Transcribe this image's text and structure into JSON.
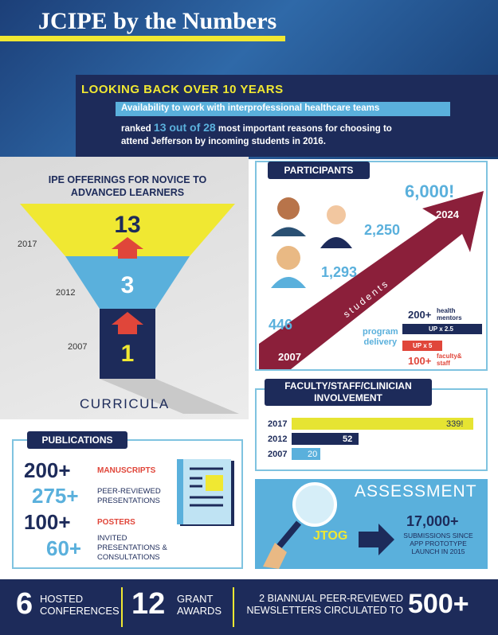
{
  "title": "JCIPE by the Numbers",
  "banner": {
    "heading": "LOOKING BACK OVER 10 YEARS",
    "line1": "Availability to work with interprofessional healthcare teams",
    "line2_pre": "ranked",
    "highlight": "13 out of 28",
    "line2_post": "most important reasons for choosing to",
    "line3": "attend Jefferson by incoming students in 2016."
  },
  "curricula": {
    "heading": [
      "IPE OFFERINGS FOR NOVICE TO",
      "ADVANCED LEARNERS"
    ],
    "levels": [
      {
        "year": "2017",
        "value": 13
      },
      {
        "year": "2012",
        "value": 3
      },
      {
        "year": "2007",
        "value": 1
      }
    ],
    "label": "CURRICULA"
  },
  "participants": {
    "heading": "PARTICIPANTS",
    "points": [
      "446",
      "1,293",
      "2,250",
      "6,000!"
    ],
    "start_year": "2007",
    "end_year": "2024",
    "arrow_label": "students",
    "program_delivery": [
      "program",
      "delivery"
    ],
    "mentors": {
      "count": "200+",
      "label": [
        "health",
        "mentors"
      ],
      "growth": "UP x 2.5"
    },
    "faculty": {
      "count": "100+",
      "label": [
        "faculty&",
        "staff"
      ],
      "growth": "UP x 5"
    }
  },
  "faculty": {
    "heading": [
      "FACULTY/STAFF/CLINICIAN",
      "INVOLVEMENT"
    ],
    "bars": [
      {
        "year": "2017",
        "label": "339!"
      },
      {
        "year": "2012",
        "label": "52"
      },
      {
        "year": "2007",
        "label": "20"
      }
    ]
  },
  "publications": {
    "heading": "PUBLICATIONS",
    "items": [
      {
        "count": "200+",
        "label": [
          "MANUSCRIPTS"
        ]
      },
      {
        "count": "275+",
        "label": [
          "PEER-REVIEWED",
          "PRESENTATIONS"
        ]
      },
      {
        "count": "100+",
        "label": [
          "POSTERS"
        ]
      },
      {
        "count": "60+",
        "label": [
          "INVITED",
          "PRESENTATIONS &",
          "CONSULTATIONS"
        ]
      }
    ]
  },
  "assessment": {
    "heading": "ASSESSMENT",
    "app": "JTOG",
    "count": "17,000+",
    "label": [
      "SUBMISSIONS SINCE",
      "APP PROTOTYPE",
      "LAUNCH IN 2015"
    ]
  },
  "footer": {
    "conferences": {
      "count": "6",
      "label": [
        "HOSTED",
        "CONFERENCES"
      ]
    },
    "grants": {
      "count": "12",
      "label": [
        "GRANT",
        "AWARDS"
      ]
    },
    "newsletters": {
      "label": [
        "2 BIANNUAL PEER-REVIEWED",
        "NEWSLETTERS CIRCULATED TO"
      ],
      "count": "500+"
    }
  }
}
